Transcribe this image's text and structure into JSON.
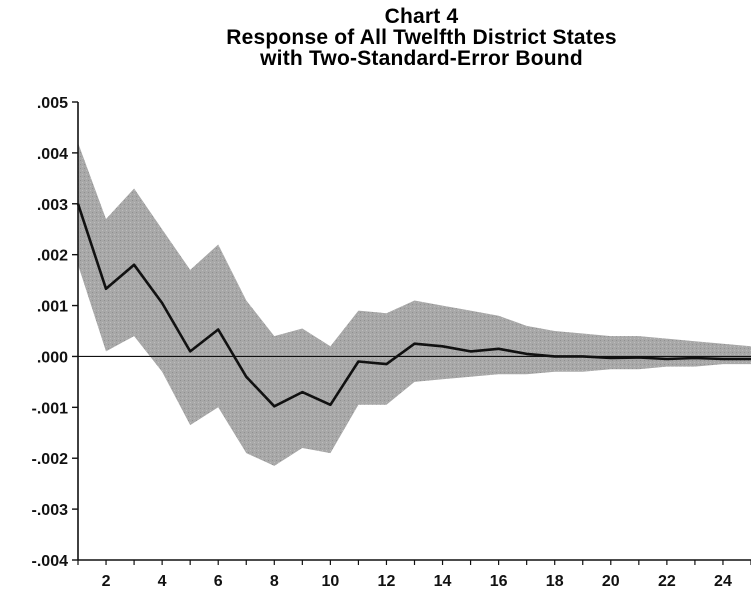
{
  "chart_data": {
    "type": "line",
    "title": "Chart 4",
    "subtitle_lines": [
      "Response of All Twelfth District States",
      "with Two-Standard-Error Bound"
    ],
    "xlabel": "",
    "ylabel": "",
    "xlim": [
      1,
      25
    ],
    "ylim": [
      -0.004,
      0.005
    ],
    "x_ticks": [
      2,
      4,
      6,
      8,
      10,
      12,
      14,
      16,
      18,
      20,
      22,
      24
    ],
    "x_tick_labels": [
      "2",
      "4",
      "6",
      "8",
      "10",
      "12",
      "14",
      "16",
      "18",
      "20",
      "22",
      "24"
    ],
    "y_ticks": [
      0.005,
      0.004,
      0.003,
      0.002,
      0.001,
      0.0,
      -0.001,
      -0.002,
      -0.003,
      -0.004
    ],
    "y_tick_labels": [
      ".005",
      ".004",
      ".003",
      ".002",
      ".001",
      ".000",
      "-.001",
      "-.002",
      "-.003",
      "-.004"
    ],
    "zero_line": 0.0,
    "grid": false,
    "x": [
      1,
      2,
      3,
      4,
      5,
      6,
      7,
      8,
      9,
      10,
      11,
      12,
      13,
      14,
      15,
      16,
      17,
      18,
      19,
      20,
      21,
      22,
      23,
      24,
      25
    ],
    "series": [
      {
        "values": [
          0.003,
          0.00133,
          0.0018,
          0.00105,
          0.0001,
          0.00053,
          -0.0004,
          -0.00098,
          -0.0007,
          -0.00095,
          -0.0001,
          -0.00015,
          0.00025,
          0.0002,
          0.0001,
          0.00015,
          5e-05,
          0.0,
          0.0,
          -3e-05,
          -2e-05,
          -5e-05,
          -3e-05,
          -5e-05,
          -5e-05
        ],
        "color": "#111111"
      }
    ],
    "band": {
      "upper": [
        0.0042,
        0.0027,
        0.0033,
        0.0025,
        0.0017,
        0.0022,
        0.0011,
        0.0004,
        0.00055,
        0.0002,
        0.0009,
        0.00085,
        0.0011,
        0.001,
        0.0009,
        0.0008,
        0.0006,
        0.0005,
        0.00045,
        0.0004,
        0.0004,
        0.00035,
        0.0003,
        0.00025,
        0.0002
      ],
      "lower": [
        0.0018,
        0.0001,
        0.0004,
        -0.0003,
        -0.00135,
        -0.001,
        -0.0019,
        -0.00215,
        -0.0018,
        -0.0019,
        -0.00095,
        -0.00095,
        -0.0005,
        -0.00045,
        -0.0004,
        -0.00035,
        -0.00035,
        -0.0003,
        -0.0003,
        -0.00025,
        -0.00025,
        -0.0002,
        -0.0002,
        -0.00015,
        -0.00015
      ],
      "color": "#a8a8a8"
    }
  }
}
